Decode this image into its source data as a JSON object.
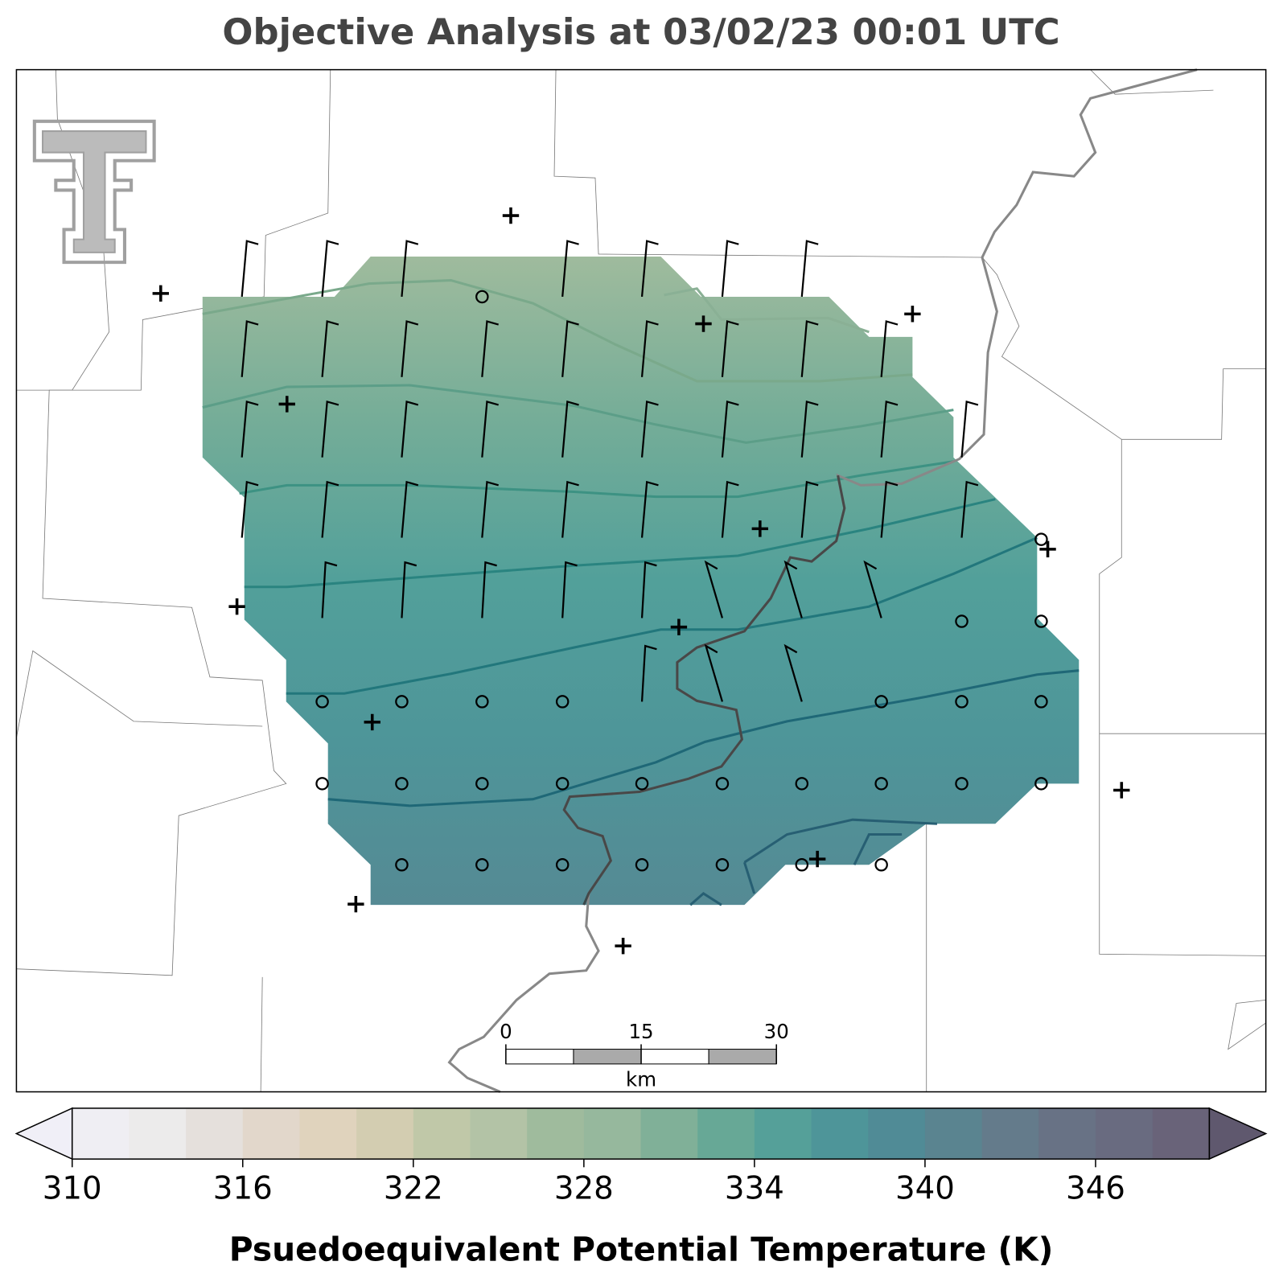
{
  "title": "Objective Analysis at 03/02/23 00:01 UTC",
  "scale_bar": {
    "ticks": [
      0,
      15,
      30
    ],
    "unit": "km"
  },
  "colorbar": {
    "label": "Psuedoequivalent Potential Temperature (K)",
    "levels": [
      310,
      312,
      314,
      316,
      318,
      320,
      322,
      324,
      326,
      328,
      330,
      332,
      334,
      336,
      338,
      340,
      342,
      344,
      346,
      348,
      350
    ],
    "colors": [
      "#efeef3",
      "#ecebeb",
      "#e5e0dc",
      "#e2d7cb",
      "#e0d3bd",
      "#d3cdb1",
      "#c0c8a8",
      "#b3c3a6",
      "#9fbb9d",
      "#96b89d",
      "#80b098",
      "#67a896",
      "#55a099",
      "#4e9599",
      "#508b96",
      "#5a8490",
      "#647b8b",
      "#687285",
      "#696b80",
      "#696379"
    ],
    "under_color": "#f0eff7",
    "over_color": "#5f586e",
    "ticks": [
      310,
      316,
      322,
      328,
      334,
      340,
      346
    ]
  }
}
